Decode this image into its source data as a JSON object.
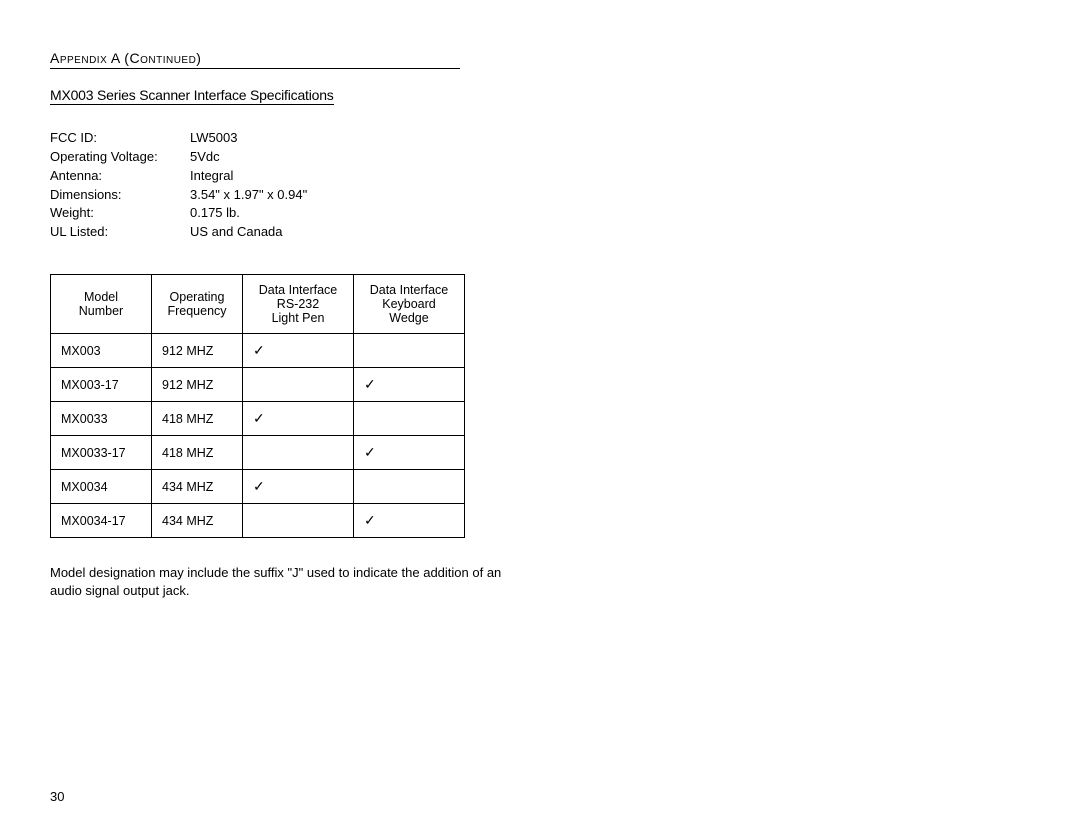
{
  "header": {
    "appendix_title": "Appendix A (Continued)",
    "subtitle": "MX003 Series Scanner Interface Specifications"
  },
  "specs": [
    {
      "label": "FCC ID:",
      "value": "LW5003"
    },
    {
      "label": "Operating Voltage:",
      "value": "5Vdc"
    },
    {
      "label": "Antenna:",
      "value": "Integral"
    },
    {
      "label": "Dimensions:",
      "value": "3.54\" x 1.97\" x 0.94\""
    },
    {
      "label": "Weight:",
      "value": "0.175 lb."
    },
    {
      "label": "UL Listed:",
      "value": "US and Canada"
    }
  ],
  "table": {
    "headers": {
      "model": "Model Number",
      "freq_line1": "Operating",
      "freq_line2": "Frequency",
      "di1_line1": "Data Interface",
      "di1_line2": "RS-232",
      "di1_line3": "Light Pen",
      "di2_line1": "Data Interface",
      "di2_line2": "Keyboard",
      "di2_line3": "Wedge"
    },
    "rows": [
      {
        "model": "MX003",
        "freq": "912 MHZ",
        "di1": "✓",
        "di2": ""
      },
      {
        "model": "MX003-17",
        "freq": "912 MHZ",
        "di1": "",
        "di2": "✓"
      },
      {
        "model": "MX0033",
        "freq": "418 MHZ",
        "di1": "✓",
        "di2": ""
      },
      {
        "model": "MX0033-17",
        "freq": "418 MHZ",
        "di1": "",
        "di2": "✓"
      },
      {
        "model": "MX0034",
        "freq": "434 MHZ",
        "di1": "✓",
        "di2": ""
      },
      {
        "model": "MX0034-17",
        "freq": "434 MHZ",
        "di1": "",
        "di2": "✓"
      }
    ]
  },
  "footnote": "Model designation may include the suffix \"J\" used to indicate the addition of an audio signal output jack.",
  "page_number": "30"
}
